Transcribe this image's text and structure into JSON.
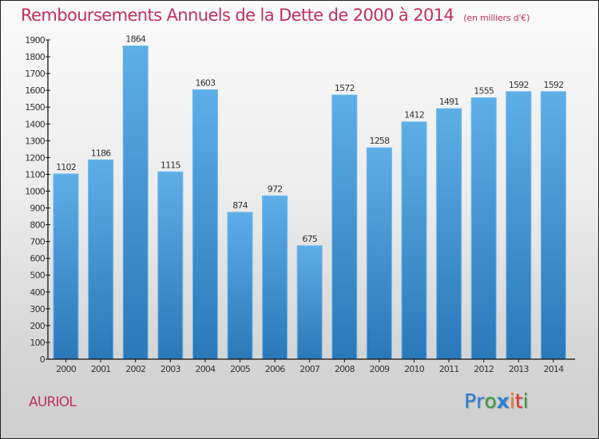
{
  "title": "Remboursements Annuels de la Dette de 2000 à 2014",
  "unit_note": "(en milliers d'€)",
  "commune": "AURIOL",
  "logo": {
    "letters": [
      {
        "char": "P",
        "color": "#2a7fd4"
      },
      {
        "char": "r",
        "color": "#2a7fd4"
      },
      {
        "char": "o",
        "color": "#3a9a3a"
      },
      {
        "char": "x",
        "color": "#2a7fd4"
      },
      {
        "char": "i",
        "color": "#f07820"
      },
      {
        "char": "t",
        "color": "#e03030"
      },
      {
        "char": "i",
        "color": "#3a9a3a"
      }
    ]
  },
  "colors": {
    "title": "#c0305e",
    "bar_top": "#5eaee8",
    "bar_bottom": "#2a78b8"
  },
  "chart_data": {
    "type": "bar",
    "title": "Remboursements Annuels de la Dette de 2000 à 2014",
    "subtitle": "(en milliers d'€)",
    "xlabel": "",
    "ylabel": "",
    "categories": [
      "2000",
      "2001",
      "2002",
      "2003",
      "2004",
      "2005",
      "2006",
      "2007",
      "2008",
      "2009",
      "2010",
      "2011",
      "2012",
      "2013",
      "2014"
    ],
    "values": [
      1102,
      1186,
      1864,
      1115,
      1603,
      874,
      972,
      675,
      1572,
      1258,
      1412,
      1491,
      1555,
      1592,
      1592
    ],
    "ylim": [
      0,
      1900
    ],
    "yticks": [
      0,
      100,
      200,
      300,
      400,
      500,
      600,
      700,
      800,
      900,
      1000,
      1100,
      1200,
      1300,
      1400,
      1500,
      1600,
      1700,
      1800,
      1900
    ],
    "grid": false,
    "legend": "none",
    "data_labels": true
  }
}
